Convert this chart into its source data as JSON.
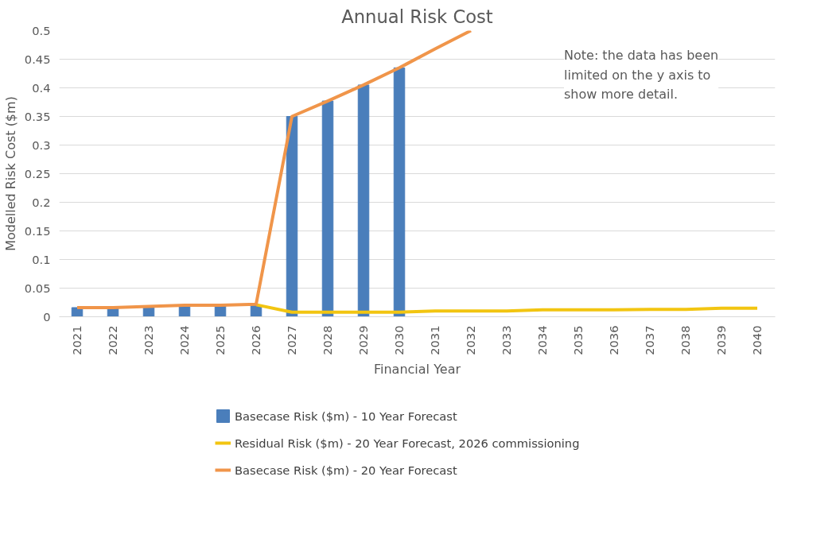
{
  "chart_data": {
    "type": "bar",
    "title": "Annual Risk Cost",
    "xlabel": "Financial Year",
    "ylabel": "Modelled Risk Cost ($m)",
    "categories": [
      "2021",
      "2022",
      "2023",
      "2024",
      "2025",
      "2026",
      "2027",
      "2028",
      "2029",
      "2030",
      "2031",
      "2032",
      "2033",
      "2034",
      "2035",
      "2036",
      "2037",
      "2038",
      "2039",
      "2040"
    ],
    "series": [
      {
        "name": "Basecase Risk ($m) - 10 Year Forecast",
        "type": "bar",
        "color": "#4a7ebb",
        "values": [
          0.016,
          0.016,
          0.017,
          0.018,
          0.019,
          0.02,
          0.35,
          0.377,
          0.405,
          0.435,
          null,
          null,
          null,
          null,
          null,
          null,
          null,
          null,
          null,
          null
        ]
      },
      {
        "name": "Residual Risk ($m) - 20 Year Forecast, 2026 commissioning",
        "type": "line",
        "color": "#f2c511",
        "values": [
          null,
          null,
          null,
          null,
          null,
          0.021,
          0.008,
          0.008,
          0.008,
          0.008,
          0.01,
          0.01,
          0.01,
          0.012,
          0.012,
          0.012,
          0.013,
          0.013,
          0.015,
          0.015
        ]
      },
      {
        "name": "Basecase Risk ($m) - 20 Year Forecast",
        "type": "line",
        "color": "#f0954a",
        "values": [
          0.016,
          0.016,
          0.018,
          0.02,
          0.02,
          0.022,
          0.35,
          0.377,
          0.405,
          0.435,
          0.468,
          0.5,
          null,
          null,
          null,
          null,
          null,
          null,
          null,
          null
        ]
      }
    ],
    "ylim": [
      0,
      0.5
    ],
    "yticks": [
      0,
      0.05,
      0.1,
      0.15,
      0.2,
      0.25,
      0.3,
      0.35,
      0.4,
      0.45,
      0.5
    ],
    "grid": "y",
    "legend": "bottom",
    "annotations": [
      "Note: the data has been limited on the y axis to show more detail."
    ]
  }
}
